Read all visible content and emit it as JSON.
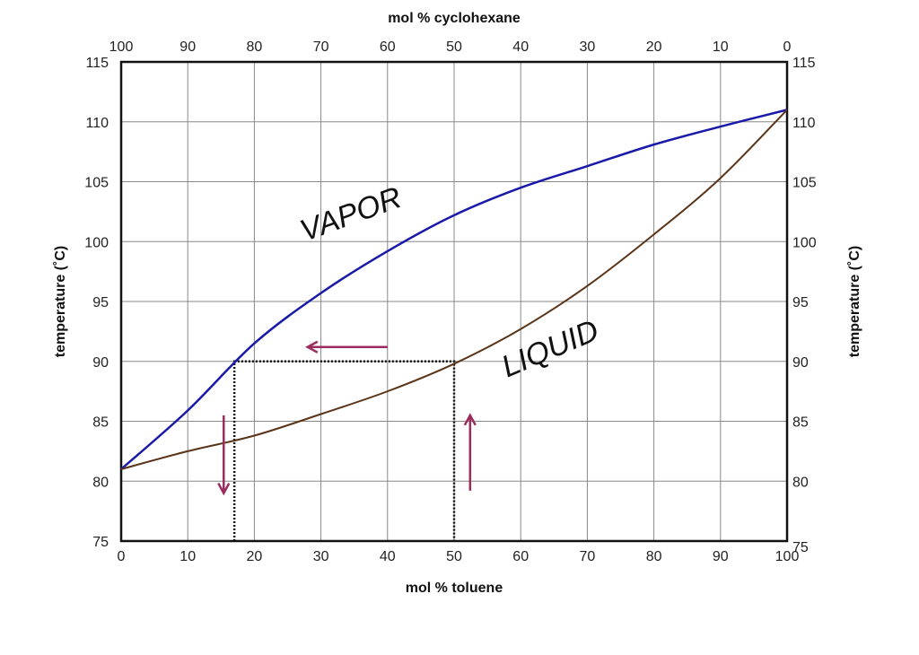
{
  "chart_data": {
    "type": "line",
    "title": "",
    "xlabel": "mol % toluene",
    "x2label": "mol % cyclohexane",
    "ylabel": "temperature (˚C)",
    "y2label": "temperature (˚C)",
    "xlim": [
      0,
      100
    ],
    "ylim": [
      75,
      115
    ],
    "x_ticks": [
      0,
      10,
      20,
      30,
      40,
      50,
      60,
      70,
      80,
      90,
      100
    ],
    "x2_ticks": [
      100,
      90,
      80,
      70,
      60,
      50,
      40,
      30,
      20,
      10,
      0
    ],
    "y_ticks": [
      75,
      80,
      85,
      90,
      95,
      100,
      105,
      110,
      115
    ],
    "grid": true,
    "series": [
      {
        "name": "VAPOR",
        "color": "#1a1aaa",
        "x": [
          0,
          10,
          20,
          30,
          40,
          50,
          60,
          70,
          80,
          90,
          100
        ],
        "y": [
          81,
          85.9,
          91.5,
          95.7,
          99.2,
          102.2,
          104.5,
          106.3,
          108.1,
          109.6,
          111
        ]
      },
      {
        "name": "LIQUID",
        "color": "#5a3418",
        "x": [
          0,
          10,
          20,
          30,
          40,
          50,
          60,
          70,
          80,
          90,
          100
        ],
        "y": [
          81,
          82.5,
          83.8,
          85.6,
          87.5,
          89.8,
          92.7,
          96.3,
          100.6,
          105.3,
          111
        ]
      }
    ],
    "tie_line": {
      "temperature": 90,
      "vapor_x": 17,
      "liquid_x": 50
    },
    "arrows": [
      {
        "from": [
          40,
          91.2
        ],
        "to": [
          28,
          91.2
        ]
      },
      {
        "from": [
          15.4,
          85.5
        ],
        "to": [
          15.4,
          79
        ]
      },
      {
        "from": [
          52.4,
          79.2
        ],
        "to": [
          52.4,
          85.5
        ]
      }
    ],
    "arrow_color": "#9b2c5e",
    "region_labels": [
      {
        "text": "VAPOR",
        "x": 35,
        "y": 101.5,
        "angle": -20
      },
      {
        "text": "LIQUID",
        "x": 65,
        "y": 90.3,
        "angle": -23
      }
    ]
  }
}
